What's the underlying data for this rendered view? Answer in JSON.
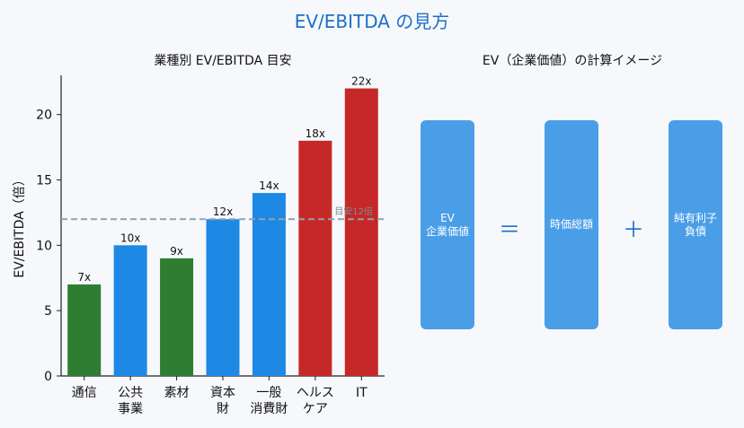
{
  "title": "EV/EBITDA の見方",
  "colors": {
    "title": "#1f6fc9",
    "green": "#2e7d32",
    "blue": "#1e88e5",
    "red": "#c62828",
    "box": "#4a9ee8",
    "ref": "#90a4ae"
  },
  "chart_data": [
    {
      "type": "bar",
      "title": "業種別 EV/EBITDA 目安",
      "ylabel": "EV/EBITDA（倍）",
      "xlabel": "",
      "ylim": [
        0,
        23
      ],
      "yticks": [
        0,
        5,
        10,
        15,
        20
      ],
      "grid": false,
      "categories": [
        {
          "lines": [
            "通信"
          ]
        },
        {
          "lines": [
            "公共",
            "事業"
          ]
        },
        {
          "lines": [
            "素材"
          ]
        },
        {
          "lines": [
            "資本",
            "財"
          ]
        },
        {
          "lines": [
            "一般",
            "消費財"
          ]
        },
        {
          "lines": [
            "ヘルス",
            "ケア"
          ]
        },
        {
          "lines": [
            "IT"
          ]
        }
      ],
      "values": [
        7,
        10,
        9,
        12,
        14,
        18,
        22
      ],
      "value_labels": [
        "7x",
        "10x",
        "9x",
        "12x",
        "14x",
        "18x",
        "22x"
      ],
      "bar_colors": [
        "green",
        "blue",
        "green",
        "blue",
        "blue",
        "red",
        "red"
      ],
      "reference_line": {
        "value": 12,
        "label": "目安12倍"
      }
    },
    {
      "type": "diagram",
      "title": "EV（企業価値）の計算イメージ",
      "boxes": [
        "EV\n企業価値",
        "時価総額",
        "純有利子\n負債"
      ],
      "operators": [
        "＝",
        "＋"
      ]
    }
  ]
}
